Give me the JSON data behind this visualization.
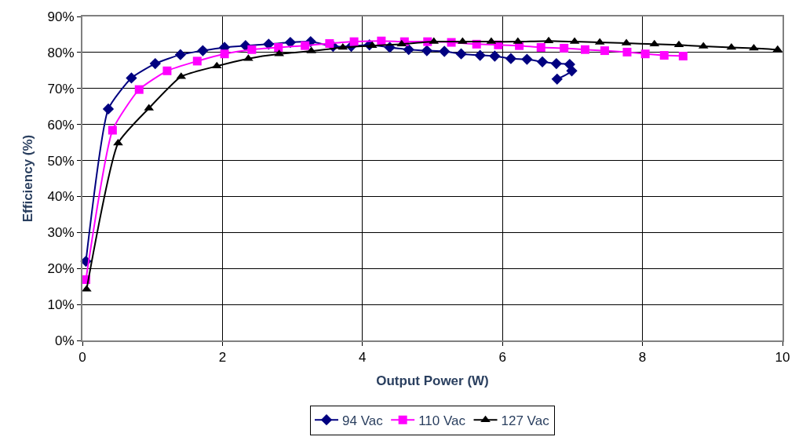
{
  "chart_data": {
    "type": "line",
    "xlabel": "Output Power (W)",
    "ylabel": "Efficiency (%)",
    "xlim": [
      0,
      10
    ],
    "xticks": [
      0,
      2,
      4,
      6,
      8,
      10
    ],
    "ylim": [
      0,
      90
    ],
    "yticks": [
      {
        "value": 0,
        "label": "0%"
      },
      {
        "value": 10,
        "label": "10%"
      },
      {
        "value": 20,
        "label": "20%"
      },
      {
        "value": 30,
        "label": "30%"
      },
      {
        "value": 40,
        "label": "40%"
      },
      {
        "value": 50,
        "label": "50%"
      },
      {
        "value": 60,
        "label": "60%"
      },
      {
        "value": 70,
        "label": "70%"
      },
      {
        "value": 80,
        "label": "80%"
      },
      {
        "value": 90,
        "label": "90%"
      }
    ],
    "grid": true,
    "legend": "bottom",
    "series": [
      {
        "name": "94 Vac",
        "color": "#000080",
        "marker": "diamond",
        "x": [
          0.05,
          0.37,
          0.7,
          1.04,
          1.4,
          1.72,
          2.03,
          2.33,
          2.66,
          2.97,
          3.26,
          3.58,
          3.84,
          4.1,
          4.39,
          4.66,
          4.92,
          5.17,
          5.41,
          5.68,
          5.89,
          6.12,
          6.35,
          6.57,
          6.77,
          6.96,
          6.99,
          6.78
        ],
        "values": [
          22,
          64.3,
          72.9,
          76.9,
          79.4,
          80.5,
          81.4,
          81.9,
          82.3,
          82.8,
          83,
          81.7,
          81.7,
          82.1,
          81.4,
          80.8,
          80.5,
          80.3,
          79.6,
          79.2,
          79,
          78.3,
          78.1,
          77.4,
          76.9,
          76.7,
          74.9,
          72.6
        ]
      },
      {
        "name": "110 Vac",
        "color": "#ff00ff",
        "marker": "square",
        "x": [
          0.05,
          0.43,
          0.81,
          1.21,
          1.64,
          2.03,
          2.42,
          2.8,
          3.18,
          3.53,
          3.88,
          4.27,
          4.6,
          4.93,
          5.27,
          5.63,
          5.94,
          6.24,
          6.55,
          6.88,
          7.18,
          7.46,
          7.78,
          8.04,
          8.31,
          8.58
        ],
        "values": [
          16.9,
          58.4,
          69.7,
          74.9,
          77.6,
          79.6,
          80.8,
          81.4,
          81.9,
          82.5,
          83,
          83.2,
          83,
          83,
          82.8,
          82.3,
          82.1,
          81.9,
          81.4,
          81.2,
          80.8,
          80.5,
          80.1,
          79.6,
          79.2,
          79
        ]
      },
      {
        "name": "127 Vac",
        "color": "#000000",
        "marker": "triangle",
        "x": [
          0.06,
          0.51,
          0.95,
          1.41,
          1.92,
          2.37,
          2.81,
          3.27,
          3.72,
          4.14,
          4.56,
          5.02,
          5.43,
          5.84,
          6.22,
          6.66,
          7.03,
          7.39,
          7.77,
          8.17,
          8.52,
          8.87,
          9.27,
          9.59,
          9.93
        ],
        "values": [
          14.2,
          54.8,
          64.5,
          73.3,
          76.2,
          78.3,
          79.6,
          80.4,
          81.4,
          81.9,
          82.3,
          83,
          83,
          83,
          83,
          83.2,
          83,
          82.8,
          82.6,
          82.3,
          82.1,
          81.7,
          81.4,
          81.2,
          80.8
        ]
      }
    ]
  }
}
